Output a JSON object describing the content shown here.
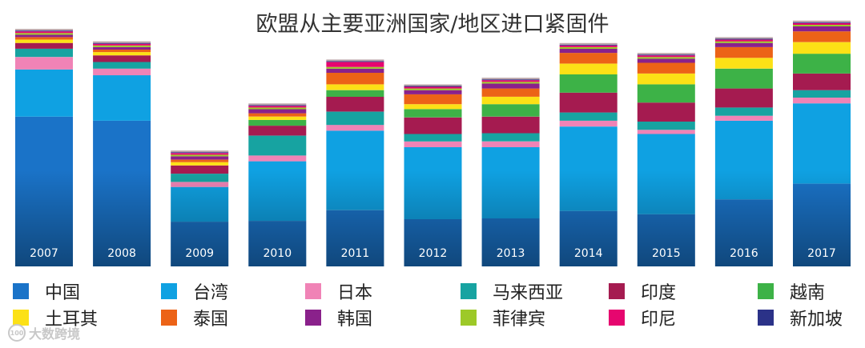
{
  "chart_data": {
    "type": "stacked-bar",
    "title": "欧盟从主要亚洲国家/地区进口紧固件",
    "categories": [
      "2007",
      "2008",
      "2009",
      "2010",
      "2011",
      "2012",
      "2013",
      "2014",
      "2015",
      "2016",
      "2017"
    ],
    "ylim": [
      0,
      290
    ],
    "grid": false,
    "legend_position": "bottom",
    "series": [
      {
        "name": "中国",
        "color": "#1a73c8",
        "values": [
          181,
          176,
          54,
          55,
          68,
          57,
          58,
          67,
          63,
          81,
          100
        ]
      },
      {
        "name": "台湾",
        "color": "#0fa1e2",
        "values": [
          57,
          55,
          42,
          72,
          96,
          87,
          86,
          102,
          97,
          95,
          97
        ]
      },
      {
        "name": "日本",
        "color": "#f083b6",
        "values": [
          15,
          8,
          6,
          7,
          7,
          7,
          7,
          7,
          5,
          6,
          7
        ]
      },
      {
        "name": "马来西亚",
        "color": "#17a3a1",
        "values": [
          10,
          8,
          10,
          24,
          16,
          9,
          10,
          10,
          10,
          10,
          9
        ]
      },
      {
        "name": "印度",
        "color": "#a51b50",
        "values": [
          7,
          8,
          10,
          12,
          18,
          20,
          20,
          24,
          23,
          23,
          20
        ]
      },
      {
        "name": "越南",
        "color": "#3db247",
        "values": [
          0,
          0,
          0,
          7,
          8,
          10,
          15,
          22,
          22,
          24,
          24
        ]
      },
      {
        "name": "土耳其",
        "color": "#fce116",
        "values": [
          4,
          4,
          4,
          4,
          7,
          6,
          9,
          13,
          13,
          13,
          14
        ]
      },
      {
        "name": "泰国",
        "color": "#ec6317",
        "values": [
          3,
          3,
          3,
          4,
          14,
          12,
          10,
          13,
          13,
          13,
          13
        ]
      },
      {
        "name": "韩国",
        "color": "#8a218b",
        "values": [
          3,
          3,
          4,
          5,
          5,
          5,
          6,
          5,
          5,
          5,
          6
        ]
      },
      {
        "name": "菲律宾",
        "color": "#9dc928",
        "values": [
          2,
          2,
          2,
          2,
          2,
          2,
          2,
          2,
          2,
          2,
          2
        ]
      },
      {
        "name": "印尼",
        "color": "#e6066f",
        "values": [
          2,
          2,
          2,
          2,
          6,
          2,
          2,
          2,
          2,
          2,
          2
        ]
      },
      {
        "name": "新加坡",
        "color": "#2b3288",
        "values": [
          1,
          1,
          1,
          1,
          1,
          1,
          1,
          1,
          1,
          1,
          1
        ]
      }
    ]
  },
  "watermark": {
    "logo_text": "100",
    "text": "大数跨境"
  }
}
